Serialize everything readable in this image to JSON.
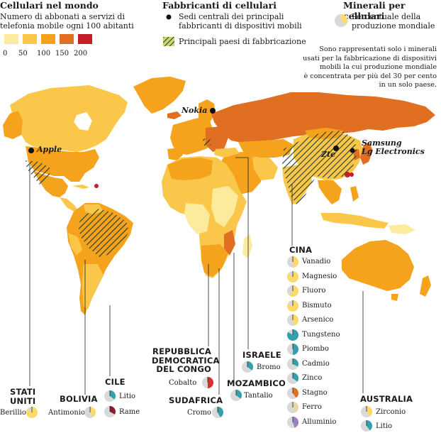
{
  "legend_subscribers": {
    "title": "Cellulari nel mondo",
    "subtitle_line1": "Numero di abbonati a servizi di",
    "subtitle_line2": "telefonia mobile ogni 100 abitanti",
    "scale_colors": [
      "#fdeb9d",
      "#fbc74a",
      "#f5a21d",
      "#e06f22",
      "#c41f26"
    ],
    "scale_ticks": [
      "0",
      "50",
      "100",
      "150",
      "200"
    ]
  },
  "legend_manufacturers": {
    "title": "Fabbricanti di cellulari",
    "hq_line1": "Sedi centrali dei principali",
    "hq_line2": "fabbricanti di dispositivi mobili",
    "countries_label": "Principali paesi di fabbricazione"
  },
  "legend_minerals": {
    "title": "Minerali per cellulari",
    "share_line1": "Percentuale della",
    "share_line2": "produzione mondiale",
    "note_lines": [
      "Sono rappresentati solo i minerali",
      "usati per la fabbricazione di dispositivi",
      "mobili la cui produzione mondiale",
      "è concentrata per più del 30 per cento",
      "in un solo paese."
    ]
  },
  "companies": {
    "nokia": "Nokia",
    "apple": "Apple",
    "zte": "Zte",
    "samsung": "Samsung",
    "lg": "Lg Electronics"
  },
  "countries": {
    "usa": {
      "name_line1": "STATI",
      "name_line2": "UNITI",
      "minerals": [
        {
          "name": "Berillio",
          "share": 0.85,
          "color": "#fbd96a"
        }
      ]
    },
    "bolivia": {
      "name": "BOLIVIA",
      "minerals": [
        {
          "name": "Antimonio",
          "share": 0.4,
          "color": "#fbd96a"
        }
      ]
    },
    "cile": {
      "name": "CILE",
      "minerals": [
        {
          "name": "Litio",
          "share": 0.35,
          "color": "#35a0ad"
        },
        {
          "name": "Rame",
          "share": 0.33,
          "color": "#8c1d2b"
        }
      ]
    },
    "congo": {
      "name_line1": "REPUBBLICA",
      "name_line2": "DEMOCRATICA",
      "name_line3": "DEL CONGO",
      "minerals": [
        {
          "name": "Cobalto",
          "share": 0.5,
          "color": "#d6302a"
        }
      ]
    },
    "sudafrica": {
      "name": "SUDAFRICA",
      "minerals": [
        {
          "name": "Cromo",
          "share": 0.42,
          "color": "#35a0ad"
        }
      ]
    },
    "mozambico": {
      "name": "MOZAMBICO",
      "minerals": [
        {
          "name": "Tantalio",
          "share": 0.35,
          "color": "#35a0ad"
        }
      ]
    },
    "israele": {
      "name": "ISRAELE",
      "minerals": [
        {
          "name": "Bromo",
          "share": 0.35,
          "color": "#35a0ad"
        }
      ]
    },
    "cina": {
      "name": "CINA",
      "minerals": [
        {
          "name": "Vanadio",
          "share": 0.5,
          "color": "#fbd96a"
        },
        {
          "name": "Magnesio",
          "share": 0.85,
          "color": "#fbd96a"
        },
        {
          "name": "Fluoro",
          "share": 0.6,
          "color": "#fbd96a"
        },
        {
          "name": "Bismuto",
          "share": 0.8,
          "color": "#fbd96a"
        },
        {
          "name": "Arsenico",
          "share": 0.45,
          "color": "#fbd96a"
        },
        {
          "name": "Tungsteno",
          "share": 0.84,
          "color": "#35a0ad"
        },
        {
          "name": "Piombo",
          "share": 0.5,
          "color": "#35a0ad"
        },
        {
          "name": "Cadmio",
          "share": 0.32,
          "color": "#35a0ad"
        },
        {
          "name": "Zinco",
          "share": 0.35,
          "color": "#35a0ad"
        },
        {
          "name": "Stagno",
          "share": 0.4,
          "color": "#e06f22"
        },
        {
          "name": "Ferro",
          "share": 0.4,
          "color": "#e8d7a8"
        },
        {
          "name": "Alluminio",
          "share": 0.45,
          "color": "#9b82bd"
        }
      ]
    },
    "australia": {
      "name": "AUSTRALIA",
      "minerals": [
        {
          "name": "Zirconio",
          "share": 0.4,
          "color": "#fbd96a"
        },
        {
          "name": "Litio",
          "share": 0.4,
          "color": "#35a0ad"
        }
      ]
    }
  }
}
